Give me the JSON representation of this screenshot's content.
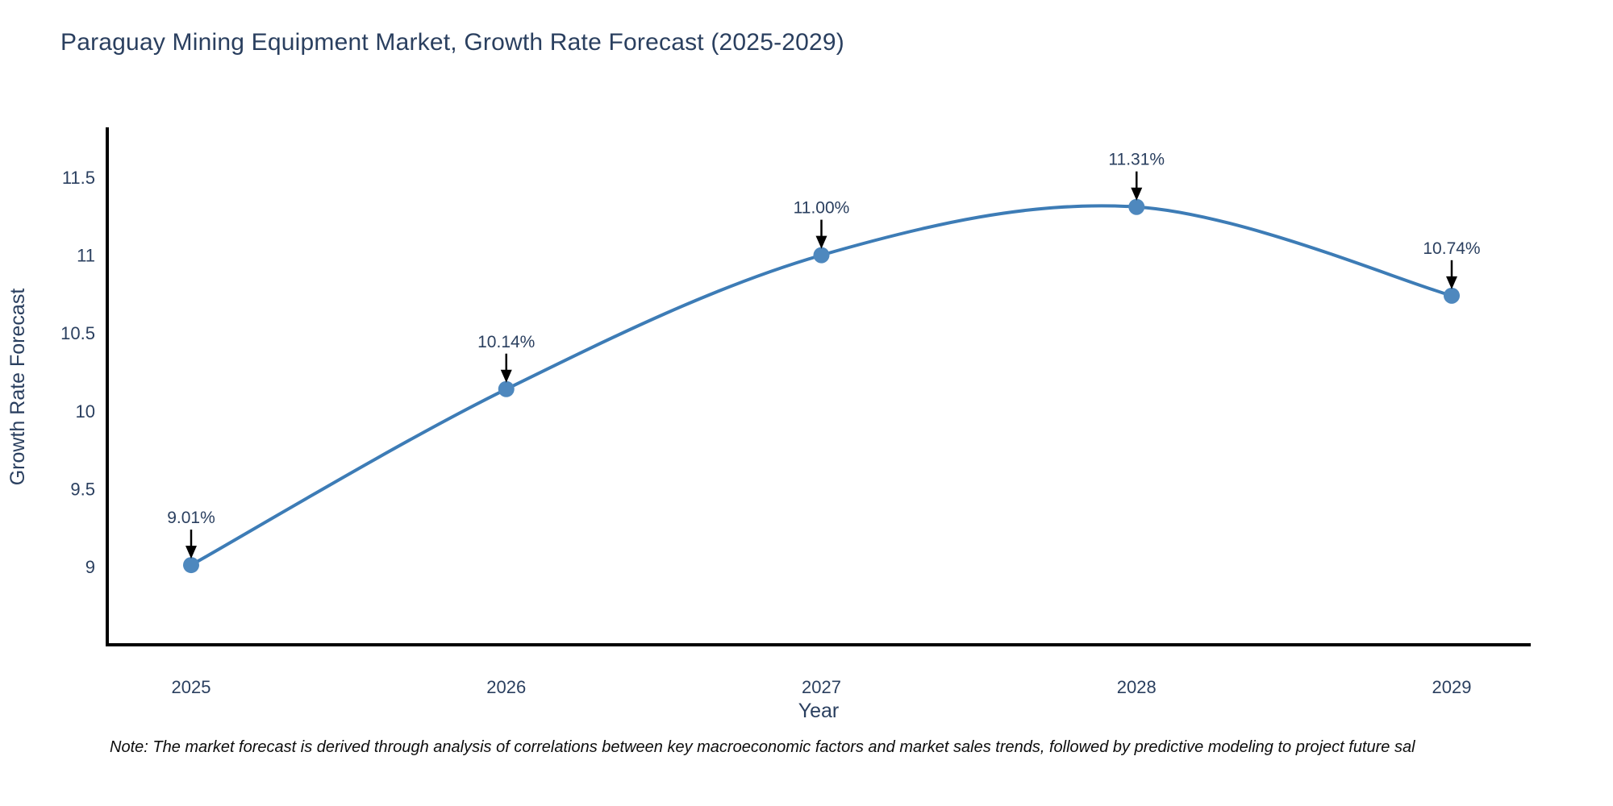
{
  "chart_data": {
    "type": "line",
    "title": "Paraguay Mining Equipment Market, Growth Rate Forecast (2025-2029)",
    "xlabel": "Year",
    "ylabel": "Growth Rate Forecast",
    "x": [
      2025,
      2026,
      2027,
      2028,
      2029
    ],
    "y": [
      9.01,
      10.14,
      11.0,
      11.31,
      10.74
    ],
    "point_labels": [
      "9.01%",
      "10.14%",
      "11.00%",
      "11.31%",
      "10.74%"
    ],
    "yticks": [
      9,
      9.5,
      10,
      10.5,
      11,
      11.5
    ],
    "ylim": [
      8.5,
      11.81
    ],
    "grid": false,
    "legend": "none",
    "line_shape": "spline",
    "colors": {
      "line": "#3d7cb6",
      "marker": "#4e88be",
      "axis": "#000000",
      "text": "#2a3f5f",
      "annotation_arrow": "#000000"
    },
    "note": "Note: The market forecast is derived through analysis of correlations between key macroeconomic factors and market sales trends, followed by predictive modeling to project future sal"
  }
}
